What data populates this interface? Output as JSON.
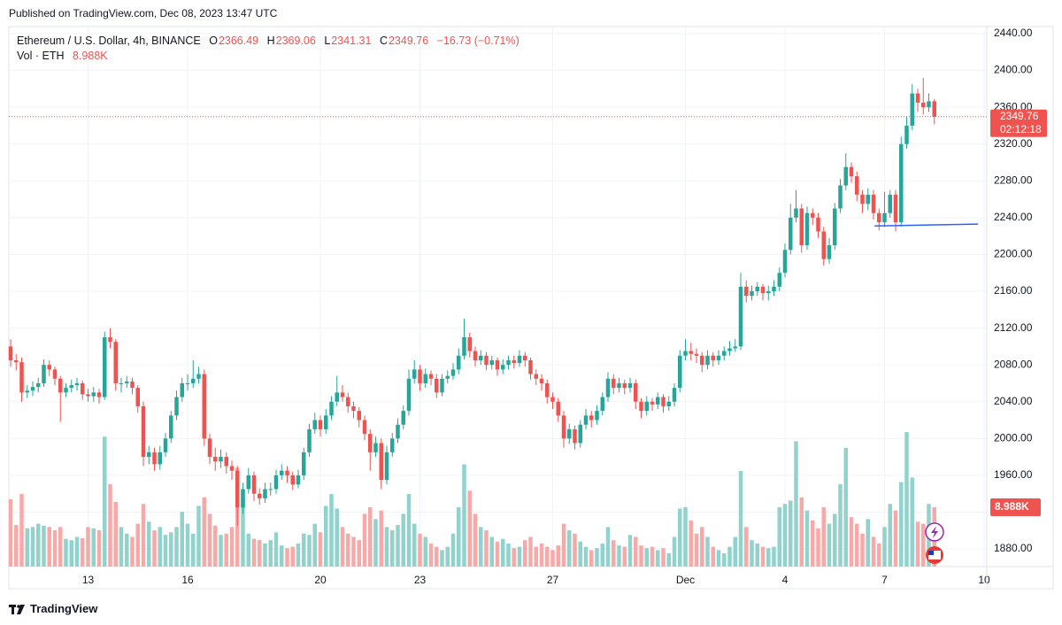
{
  "header": {
    "published": "Published on TradingView.com, Dec 08, 2023 13:47 UTC"
  },
  "footer": {
    "brand": "TradingView"
  },
  "chart_data": {
    "type": "candlestick",
    "title": "Ethereum / U.S. Dollar, 4h, BINANCE",
    "ohlc_letters": [
      "O",
      "H",
      "L",
      "C"
    ],
    "change": "−16.73 (−0.71%)",
    "volume_title": "Vol · ETH",
    "volume_label": "8.988K",
    "countdown": "02:12:18",
    "up_color": "#26a69a",
    "down_color": "#ef5350",
    "up_volume_color": "#92d2cc",
    "down_volume_color": "#f7a9a7",
    "grid": true,
    "xlim": [
      -0.32,
      176.48
    ],
    "ylim": [
      1860.8,
      2447.7
    ],
    "vol_ylim": [
      0,
      40
    ],
    "xticks": [
      {
        "value": 14,
        "label": "13"
      },
      {
        "value": 32,
        "label": "16"
      },
      {
        "value": 56,
        "label": "20"
      },
      {
        "value": 74,
        "label": "23"
      },
      {
        "value": 98,
        "label": "27"
      },
      {
        "value": 122,
        "label": "Dec"
      },
      {
        "value": 140,
        "label": "4"
      },
      {
        "value": 158,
        "label": "7"
      },
      {
        "value": 176,
        "label": "10"
      }
    ],
    "yticks": [
      {
        "value": 1880,
        "label": "1880.00"
      },
      {
        "value": 1920,
        "label": "1920.00"
      },
      {
        "value": 1960,
        "label": "1960.00"
      },
      {
        "value": 2000,
        "label": "2000.00"
      },
      {
        "value": 2040,
        "label": "2040.00"
      },
      {
        "value": 2080,
        "label": "2080.00"
      },
      {
        "value": 2120,
        "label": "2120.00"
      },
      {
        "value": 2160,
        "label": "2160.00"
      },
      {
        "value": 2200,
        "label": "2200.00"
      },
      {
        "value": 2240,
        "label": "2240.00"
      },
      {
        "value": 2280,
        "label": "2280.00"
      },
      {
        "value": 2320,
        "label": "2320.00"
      },
      {
        "value": 2360,
        "label": "2360.00"
      },
      {
        "value": 2400,
        "label": "2400.00"
      },
      {
        "value": 2440,
        "label": "2440.00"
      }
    ],
    "trendline": {
      "x": [
        156.2,
        174.9
      ],
      "y": [
        2231,
        2233
      ],
      "color": "#2962ff"
    },
    "open": [
      2100,
      2085,
      2083,
      2050,
      2052,
      2056,
      2060,
      2080,
      2075,
      2065,
      2050,
      2055,
      2058,
      2060,
      2048,
      2046,
      2050,
      2045,
      2110,
      2105,
      2060,
      2060,
      2062,
      2055,
      2035,
      1980,
      1985,
      1972,
      1985,
      2000,
      2025,
      2045,
      2060,
      2060,
      2065,
      2070,
      2000,
      1980,
      1975,
      1980,
      1970,
      1965,
      1925,
      1945,
      1960,
      1940,
      1935,
      1945,
      1945,
      1960,
      1965,
      1960,
      1950,
      1960,
      1985,
      2010,
      2020,
      2010,
      2025,
      2040,
      2050,
      2045,
      2035,
      2030,
      2020,
      2005,
      1985,
      1995,
      1955,
      1985,
      2000,
      2015,
      2030,
      2065,
      2075,
      2060,
      2070,
      2065,
      2050,
      2065,
      2068,
      2075,
      2090,
      2110,
      2095,
      2085,
      2090,
      2080,
      2085,
      2075,
      2080,
      2085,
      2082,
      2090,
      2085,
      2070,
      2065,
      2060,
      2045,
      2040,
      2025,
      2000,
      2010,
      1995,
      2015,
      2025,
      2020,
      2030,
      2045,
      2065,
      2055,
      2060,
      2055,
      2060,
      2040,
      2030,
      2040,
      2037,
      2045,
      2035,
      2040,
      2055,
      2090,
      2095,
      2092,
      2090,
      2080,
      2090,
      2085,
      2090,
      2095,
      2098,
      2100,
      2165,
      2155,
      2160,
      2165,
      2158,
      2160,
      2165,
      2180,
      2205,
      2240,
      2250,
      2210,
      2245,
      2240,
      2225,
      2195,
      2210,
      2250,
      2275,
      2295,
      2285,
      2265,
      2255,
      2265,
      2245,
      2235,
      2245,
      2265,
      2235,
      2320,
      2340,
      2375,
      2365,
      2360,
      2366.49
    ],
    "high": [
      2108,
      2092,
      2088,
      2058,
      2062,
      2066,
      2086,
      2085,
      2078,
      2068,
      2060,
      2064,
      2066,
      2063,
      2054,
      2056,
      2054,
      2116,
      2120,
      2108,
      2066,
      2068,
      2066,
      2058,
      2040,
      1992,
      1990,
      1992,
      2006,
      2030,
      2052,
      2066,
      2070,
      2085,
      2078,
      2075,
      2005,
      1990,
      1988,
      1985,
      1976,
      1970,
      1952,
      1968,
      1964,
      1946,
      1952,
      1952,
      1966,
      1972,
      1970,
      1964,
      1966,
      1990,
      2016,
      2028,
      2025,
      2032,
      2046,
      2068,
      2058,
      2050,
      2040,
      2034,
      2025,
      2010,
      2002,
      2000,
      1992,
      2006,
      2022,
      2036,
      2075,
      2085,
      2080,
      2076,
      2074,
      2070,
      2070,
      2074,
      2082,
      2098,
      2130,
      2115,
      2100,
      2096,
      2094,
      2090,
      2088,
      2086,
      2090,
      2090,
      2096,
      2094,
      2088,
      2075,
      2070,
      2064,
      2050,
      2044,
      2030,
      2016,
      2014,
      2020,
      2032,
      2030,
      2036,
      2050,
      2072,
      2070,
      2066,
      2064,
      2066,
      2064,
      2044,
      2046,
      2044,
      2050,
      2048,
      2046,
      2060,
      2096,
      2108,
      2104,
      2098,
      2094,
      2096,
      2094,
      2096,
      2100,
      2106,
      2108,
      2180,
      2172,
      2166,
      2170,
      2168,
      2166,
      2172,
      2186,
      2212,
      2255,
      2270,
      2255,
      2252,
      2250,
      2245,
      2230,
      2218,
      2256,
      2282,
      2310,
      2300,
      2290,
      2270,
      2272,
      2270,
      2250,
      2268,
      2270,
      2270,
      2328,
      2350,
      2385,
      2380,
      2392,
      2375,
      2369.06
    ],
    "low": [
      2078,
      2074,
      2040,
      2044,
      2046,
      2050,
      2056,
      2068,
      2058,
      2018,
      2045,
      2050,
      2052,
      2042,
      2040,
      2040,
      2038,
      2042,
      2098,
      2052,
      2050,
      2055,
      2048,
      2028,
      1970,
      1972,
      1965,
      1966,
      1980,
      1995,
      2020,
      2040,
      2052,
      2055,
      2060,
      1992,
      1972,
      1965,
      1968,
      1962,
      1955,
      1905,
      1918,
      1940,
      1932,
      1928,
      1930,
      1938,
      1940,
      1955,
      1952,
      1944,
      1946,
      1955,
      1980,
      2005,
      2002,
      2005,
      2020,
      2035,
      2040,
      2028,
      2022,
      2012,
      1998,
      1965,
      1980,
      1945,
      1950,
      1980,
      1995,
      2010,
      2025,
      2060,
      2052,
      2055,
      2058,
      2044,
      2046,
      2060,
      2064,
      2070,
      2086,
      2088,
      2078,
      2080,
      2074,
      2075,
      2068,
      2070,
      2075,
      2076,
      2078,
      2078,
      2064,
      2058,
      2052,
      2038,
      2032,
      2018,
      1990,
      1994,
      1988,
      1990,
      2010,
      2012,
      2015,
      2025,
      2040,
      2048,
      2050,
      2048,
      2050,
      2032,
      2022,
      2025,
      2030,
      2032,
      2028,
      2030,
      2035,
      2050,
      2085,
      2085,
      2082,
      2072,
      2075,
      2078,
      2080,
      2085,
      2090,
      2094,
      2096,
      2148,
      2150,
      2155,
      2150,
      2150,
      2155,
      2160,
      2175,
      2200,
      2235,
      2202,
      2205,
      2232,
      2218,
      2188,
      2190,
      2205,
      2245,
      2270,
      2278,
      2258,
      2245,
      2248,
      2238,
      2226,
      2230,
      2240,
      2225,
      2230,
      2315,
      2335,
      2355,
      2352,
      2355,
      2341.31
    ],
    "close": [
      2085,
      2083,
      2050,
      2052,
      2056,
      2060,
      2080,
      2075,
      2065,
      2050,
      2055,
      2058,
      2060,
      2048,
      2046,
      2050,
      2045,
      2110,
      2105,
      2060,
      2060,
      2062,
      2055,
      2035,
      1980,
      1985,
      1972,
      1985,
      2000,
      2025,
      2045,
      2060,
      2060,
      2065,
      2070,
      2000,
      1980,
      1975,
      1980,
      1970,
      1965,
      1925,
      1945,
      1960,
      1940,
      1935,
      1945,
      1945,
      1960,
      1965,
      1960,
      1950,
      1960,
      1985,
      2010,
      2020,
      2010,
      2025,
      2040,
      2050,
      2045,
      2035,
      2030,
      2020,
      2005,
      1985,
      1995,
      1955,
      1985,
      2000,
      2015,
      2030,
      2065,
      2075,
      2060,
      2070,
      2065,
      2050,
      2065,
      2068,
      2075,
      2090,
      2110,
      2095,
      2085,
      2090,
      2080,
      2085,
      2075,
      2080,
      2085,
      2082,
      2090,
      2085,
      2070,
      2065,
      2060,
      2045,
      2040,
      2025,
      2000,
      2010,
      1995,
      2015,
      2025,
      2020,
      2030,
      2045,
      2065,
      2055,
      2060,
      2055,
      2060,
      2040,
      2030,
      2040,
      2037,
      2045,
      2035,
      2040,
      2055,
      2090,
      2095,
      2092,
      2090,
      2080,
      2090,
      2085,
      2090,
      2095,
      2098,
      2100,
      2165,
      2155,
      2160,
      2165,
      2158,
      2160,
      2165,
      2180,
      2205,
      2240,
      2250,
      2210,
      2245,
      2240,
      2225,
      2195,
      2210,
      2250,
      2275,
      2295,
      2285,
      2265,
      2255,
      2265,
      2245,
      2235,
      2245,
      2265,
      2235,
      2320,
      2340,
      2375,
      2365,
      2360,
      2366.49,
      2349.76
    ],
    "volume": [
      10.2,
      6.3,
      11.0,
      5.8,
      6.0,
      6.5,
      6.2,
      6.0,
      5.5,
      6.0,
      4.2,
      4.0,
      4.5,
      4.3,
      6.0,
      5.8,
      5.5,
      19.7,
      12.5,
      9.8,
      6.0,
      5.0,
      4.5,
      6.5,
      9.5,
      6.8,
      5.5,
      6.0,
      4.8,
      5.2,
      6.0,
      8.3,
      6.5,
      5.0,
      9.2,
      10.5,
      8.0,
      6.2,
      4.8,
      5.0,
      6.0,
      15.0,
      10.5,
      5.0,
      4.2,
      4.0,
      3.5,
      4.0,
      5.2,
      3.2,
      2.8,
      3.0,
      3.5,
      5.0,
      4.8,
      6.5,
      5.2,
      9.2,
      11.0,
      8.8,
      6.0,
      5.0,
      4.5,
      4.0,
      8.0,
      9.0,
      7.2,
      8.5,
      6.0,
      5.5,
      6.3,
      8.0,
      11.0,
      6.5,
      5.0,
      4.5,
      3.5,
      3.0,
      2.5,
      3.0,
      5.0,
      9.0,
      15.5,
      11.5,
      8.0,
      6.0,
      5.5,
      4.5,
      3.8,
      4.2,
      3.5,
      2.8,
      3.0,
      4.0,
      4.5,
      3.0,
      3.5,
      3.0,
      2.5,
      3.2,
      6.5,
      5.5,
      5.0,
      3.8,
      3.0,
      2.5,
      2.8,
      3.5,
      6.0,
      4.0,
      3.2,
      3.0,
      4.8,
      4.5,
      3.2,
      2.8,
      3.0,
      2.5,
      2.8,
      2.0,
      4.5,
      8.8,
      9.0,
      7.0,
      5.0,
      6.0,
      4.5,
      3.0,
      2.5,
      2.0,
      3.0,
      4.5,
      14.5,
      6.0,
      4.0,
      3.5,
      3.0,
      2.8,
      3.0,
      9.0,
      9.5,
      10.0,
      19.0,
      10.5,
      8.5,
      7.0,
      5.8,
      9.0,
      6.5,
      8.0,
      12.5,
      18.0,
      7.5,
      6.5,
      5.0,
      7.2,
      4.5,
      3.5,
      6.0,
      9.5,
      8.5,
      12.8,
      20.4,
      13.5,
      6.8,
      6.5,
      9.5,
      8.988
    ]
  }
}
